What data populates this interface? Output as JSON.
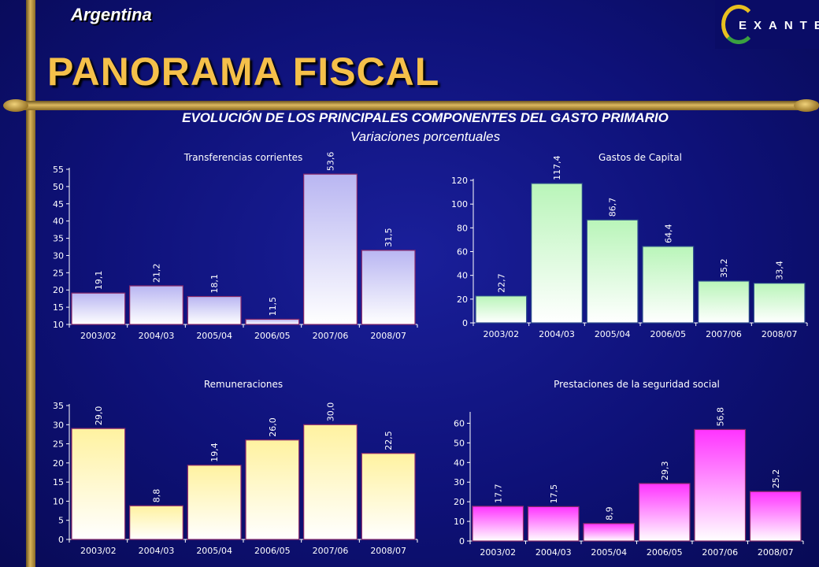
{
  "header": {
    "country": "Argentina",
    "title": "PANORAMA FISCAL",
    "subtitle": "EVOLUCIÓN DE LOS PRINCIPALES COMPONENTES DEL GASTO PRIMARIO",
    "subtitle2": "Variaciones porcentuales",
    "logo_text": "EXANTE"
  },
  "chart_data": [
    {
      "id": "transferencias",
      "type": "bar",
      "title": "Transferencias corrientes",
      "categories": [
        "2003/02",
        "2004/03",
        "2005/04",
        "2006/05",
        "2007/06",
        "2008/07"
      ],
      "values": [
        19.1,
        21.2,
        18.1,
        11.5,
        53.6,
        31.5
      ],
      "value_labels": [
        "19,1",
        "21,2",
        "18,1",
        "11,5",
        "53,6",
        "31,5"
      ],
      "ylim": [
        10,
        55
      ],
      "yticks": [
        10,
        15,
        20,
        25,
        30,
        35,
        40,
        45,
        50,
        55
      ],
      "bar_color_top": "#b9b6f2",
      "bar_color_bottom": "#ffffff",
      "bar_border": "#8a2a6a"
    },
    {
      "id": "capital",
      "type": "bar",
      "title": "Gastos de Capital",
      "categories": [
        "2003/02",
        "2004/03",
        "2005/04",
        "2006/05",
        "2007/06",
        "2008/07"
      ],
      "values": [
        22.7,
        117.4,
        86.7,
        64.4,
        35.2,
        33.4
      ],
      "value_labels": [
        "22,7",
        "117,4",
        "86,7",
        "64,4",
        "35,2",
        "33,4"
      ],
      "ylim": [
        0,
        120
      ],
      "yticks": [
        0,
        20,
        40,
        60,
        80,
        100,
        120
      ],
      "bar_color_top": "#b9f5b9",
      "bar_color_bottom": "#ffffff",
      "bar_border": "#2a4a8a"
    },
    {
      "id": "remuneraciones",
      "type": "bar",
      "title": "Remuneraciones",
      "categories": [
        "2003/02",
        "2004/03",
        "2005/04",
        "2006/05",
        "2007/06",
        "2008/07"
      ],
      "values": [
        29.0,
        8.8,
        19.4,
        26.0,
        30.0,
        22.5
      ],
      "value_labels": [
        "29,0",
        "8,8",
        "19,4",
        "26,0",
        "30,0",
        "22,5"
      ],
      "ylim": [
        0,
        35
      ],
      "yticks": [
        0,
        5,
        10,
        15,
        20,
        25,
        30,
        35
      ],
      "bar_color_top": "#fff2a0",
      "bar_color_bottom": "#ffffff",
      "bar_border": "#8a2a6a"
    },
    {
      "id": "prestaciones",
      "type": "bar",
      "title": "Prestaciones de la seguridad social",
      "categories": [
        "2003/02",
        "2004/03",
        "2005/04",
        "2006/05",
        "2007/06",
        "2008/07"
      ],
      "values": [
        17.7,
        17.5,
        8.9,
        29.3,
        56.8,
        25.2
      ],
      "value_labels": [
        "17,7",
        "17,5",
        "8,9",
        "29,3",
        "56,8",
        "25,2"
      ],
      "ylim": [
        0,
        65
      ],
      "yticks": [
        0,
        10,
        20,
        30,
        40,
        50,
        60
      ],
      "bar_color_top": "#ff33ff",
      "bar_color_bottom": "#ffffff",
      "bar_border": "#8a2a6a"
    }
  ]
}
